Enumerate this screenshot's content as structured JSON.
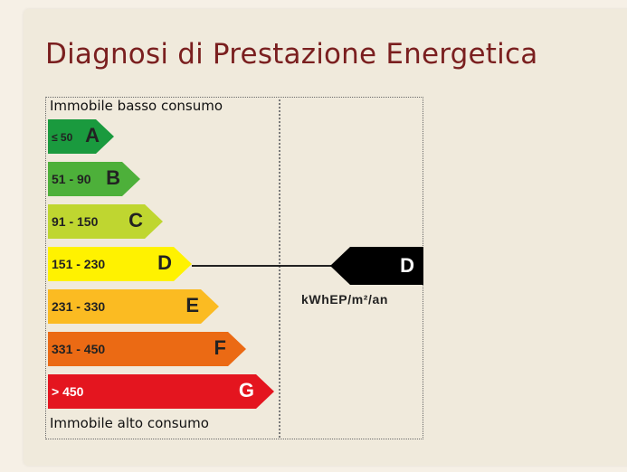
{
  "card": {
    "title": "Diagnosi di Prestazione Energetica"
  },
  "chart": {
    "top_label": "Immobile basso consumo",
    "bottom_label": "Immobile alto consumo",
    "classes": [
      {
        "range": "≤ 50",
        "letter": "A",
        "color": "#1a9a3e"
      },
      {
        "range": "51 - 90",
        "letter": "B",
        "color": "#4db03a"
      },
      {
        "range": "91 - 150",
        "letter": "C",
        "color": "#bfd630"
      },
      {
        "range": "151 - 230",
        "letter": "D",
        "color": "#fff200"
      },
      {
        "range": "231 - 330",
        "letter": "E",
        "color": "#fbbb22"
      },
      {
        "range": "331 - 450",
        "letter": "F",
        "color": "#eb6a14"
      },
      {
        "range": "> 450",
        "letter": "G",
        "color": "#e4151f"
      }
    ],
    "current_class": "D",
    "unit": "kWhEP/m²/an"
  }
}
